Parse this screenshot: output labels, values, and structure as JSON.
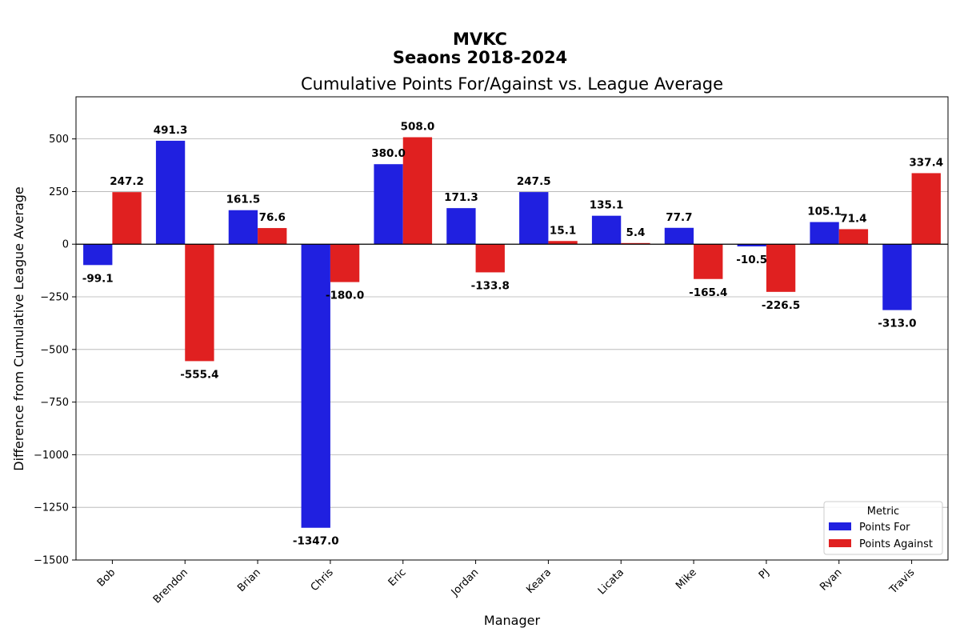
{
  "figure": {
    "suptitle_line1": "MVKC",
    "suptitle_line2": "Seaons 2018-2024"
  },
  "chart_data": {
    "type": "bar",
    "title": "Cumulative Points For/Against vs. League Average",
    "xlabel": "Manager",
    "ylabel": "Difference from Cumulative League Average",
    "categories": [
      "Bob",
      "Brendon",
      "Brian",
      "Chris",
      "Eric",
      "Jordan",
      "Keara",
      "Licata",
      "Mike",
      "PJ",
      "Ryan",
      "Travis"
    ],
    "series": [
      {
        "name": "Points For",
        "color": "#2020e0",
        "values": [
          -99.1,
          491.3,
          161.5,
          -1347.0,
          380.0,
          171.3,
          247.5,
          135.1,
          77.7,
          -10.5,
          105.1,
          -313.0
        ],
        "labels": [
          "-99.1",
          "491.3",
          "161.5",
          "-1347.0",
          "380.0",
          "171.3",
          "247.5",
          "135.1",
          "77.7",
          "-10.5",
          "105.1",
          "-313.0"
        ]
      },
      {
        "name": "Points Against",
        "color": "#e02020",
        "values": [
          247.2,
          -555.4,
          76.6,
          -180.0,
          508.0,
          -133.8,
          15.1,
          5.4,
          -165.4,
          -226.5,
          71.4,
          337.4
        ],
        "labels": [
          "247.2",
          "-555.4",
          "76.6",
          "-180.0",
          "508.0",
          "-133.8",
          "15.1",
          "5.4",
          "-165.4",
          "-226.5",
          "71.4",
          "337.4"
        ]
      }
    ],
    "ylim": [
      -1500,
      700
    ],
    "yticks": [
      -1500,
      -1250,
      -1000,
      -750,
      -500,
      -250,
      0,
      250,
      500
    ],
    "ytick_labels": [
      "−1500",
      "−1250",
      "−1000",
      "−750",
      "−500",
      "−250",
      "0",
      "250",
      "500"
    ],
    "grid": "horizontal",
    "legend": {
      "title": "Metric",
      "placement": "lower-right"
    }
  }
}
